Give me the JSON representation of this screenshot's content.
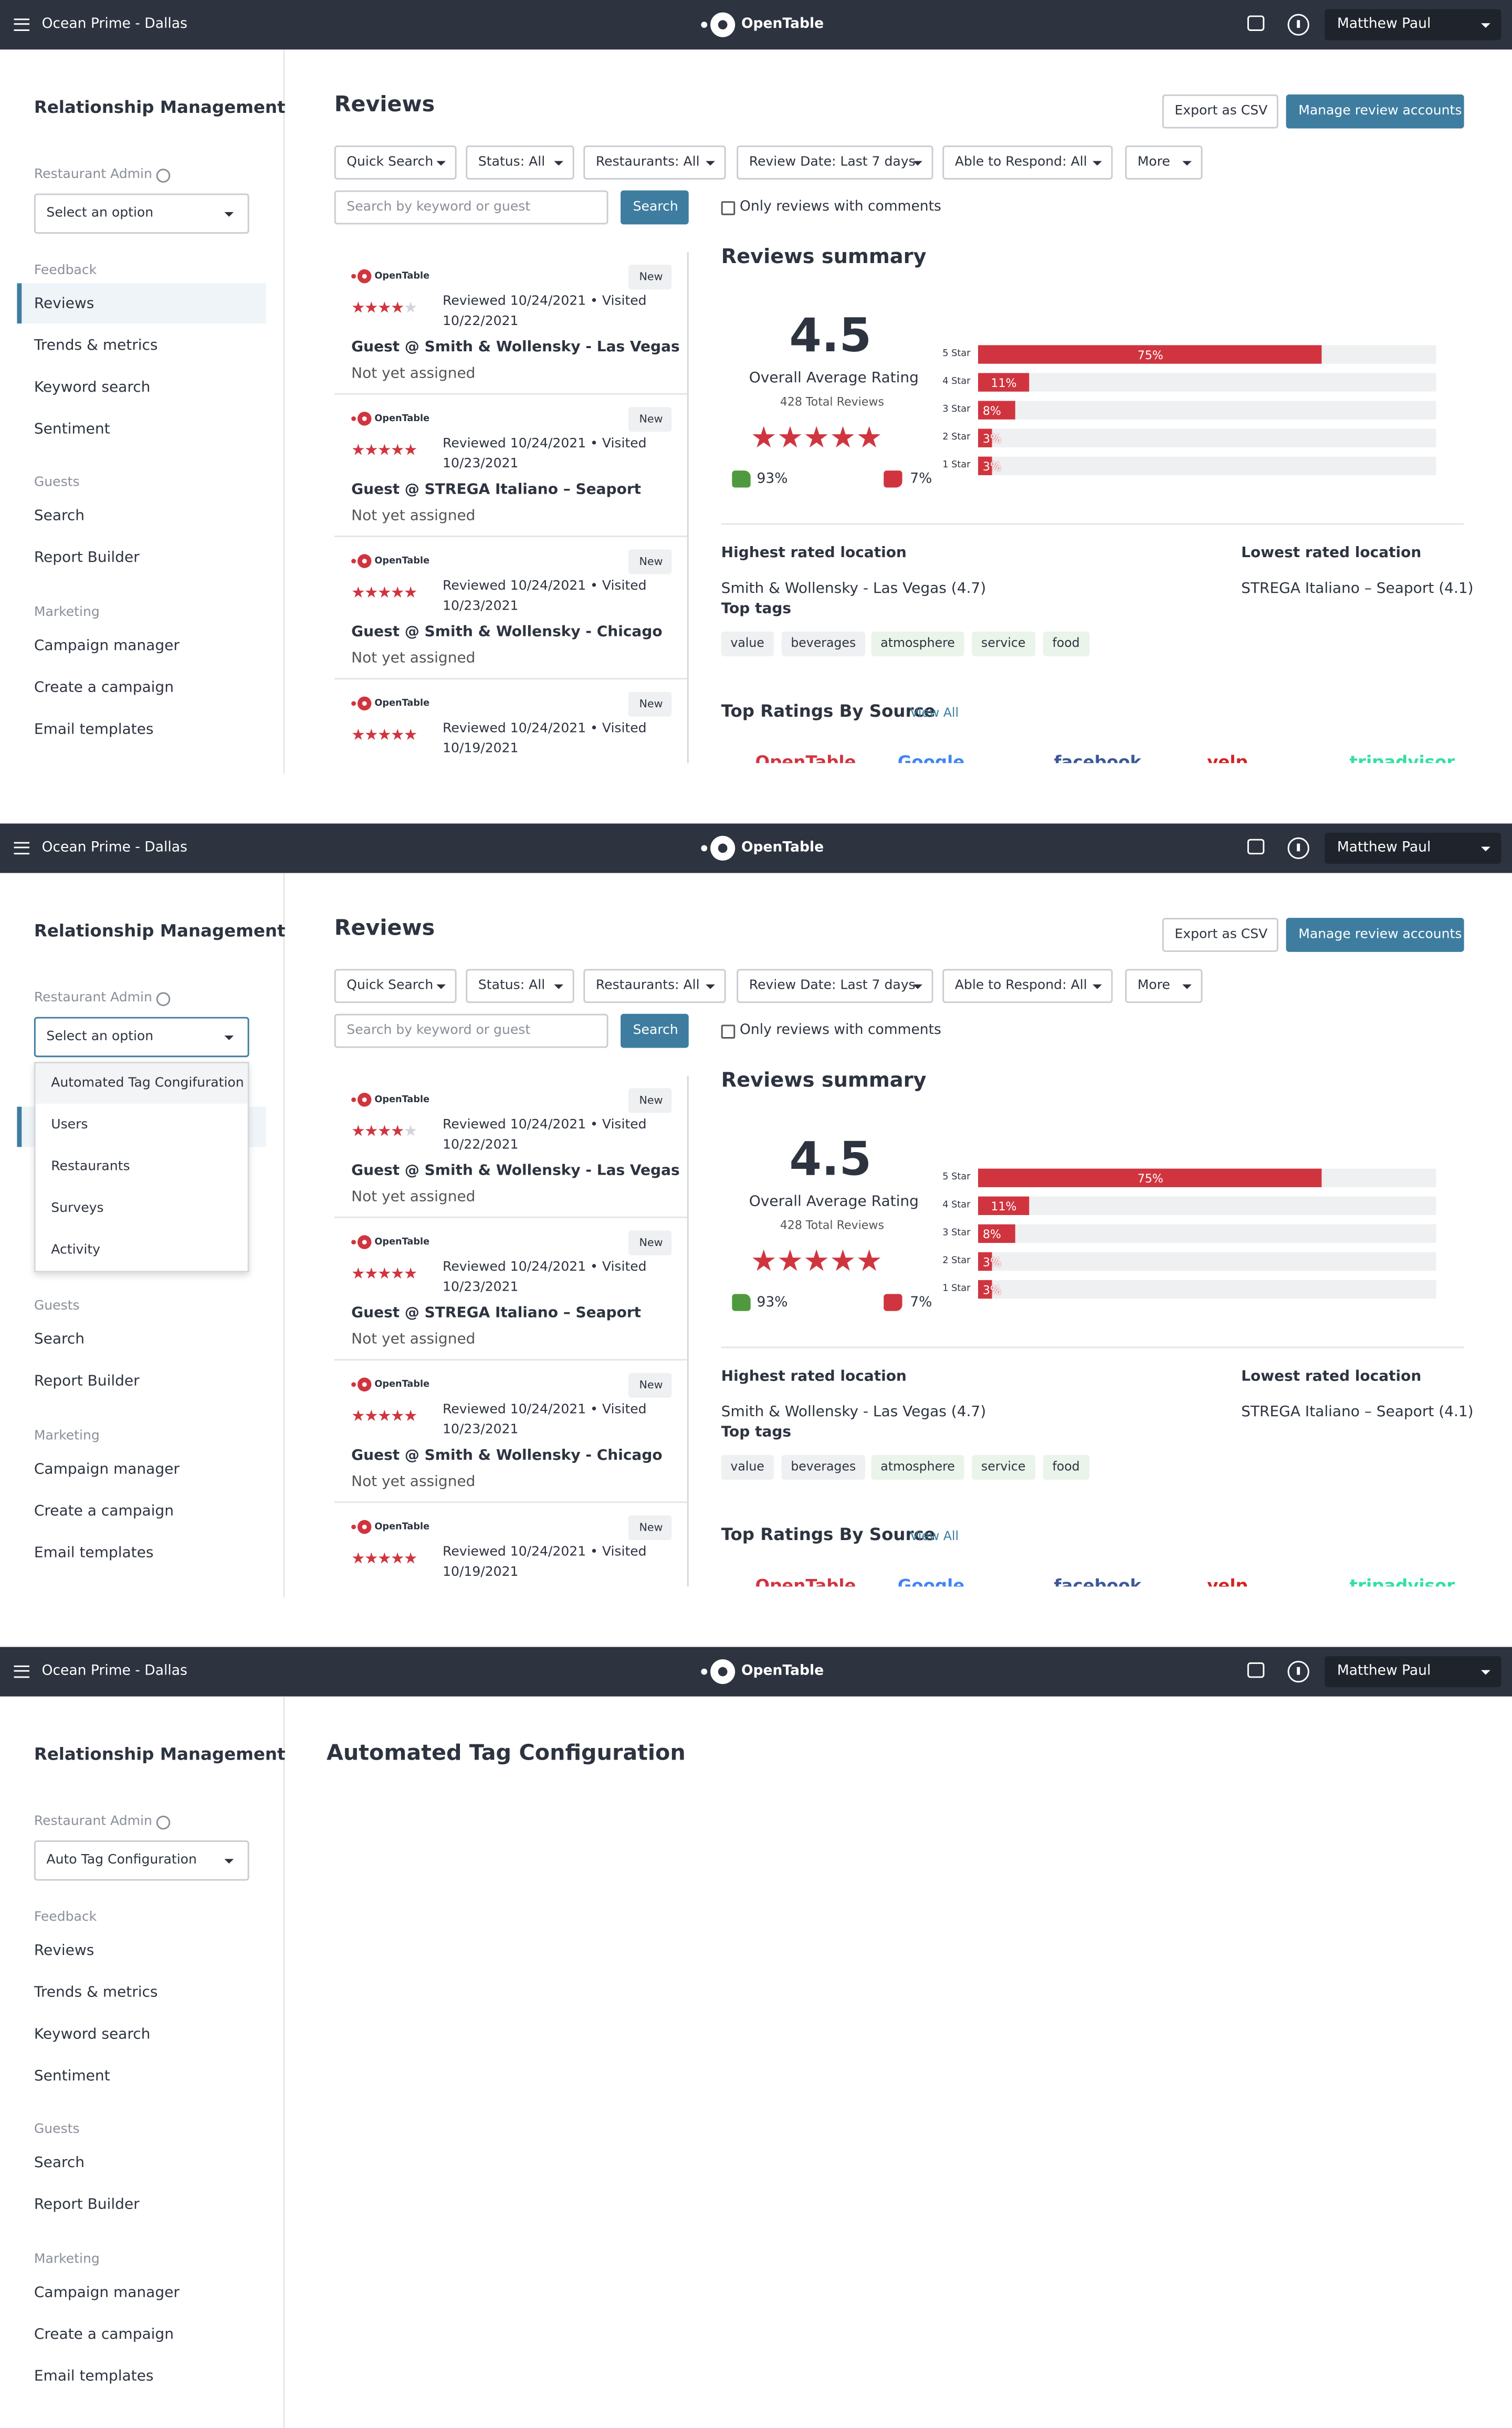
{
  "header": {
    "restaurant": "Ocean Prime - Dallas",
    "brand": "OpenTable",
    "user": "Matthew Paul"
  },
  "sidebar": {
    "title": "Relationship Management",
    "admin_label": "Restaurant Admin",
    "select_placeholder": "Select an option",
    "sections": [
      {
        "heading": "Feedback",
        "items": [
          "Reviews",
          "Trends & metrics",
          "Keyword search",
          "Sentiment"
        ]
      },
      {
        "heading": "Guests",
        "items": [
          "Search",
          "Report Builder"
        ]
      },
      {
        "heading": "Marketing",
        "items": [
          "Campaign manager",
          "Create a campaign",
          "Email templates"
        ]
      }
    ]
  },
  "admin_menu": [
    "Automated Tag Congifuration",
    "Users",
    "Restaurants",
    "Surveys",
    "Activity"
  ],
  "reviews_page": {
    "title": "Reviews",
    "export": "Export as CSV",
    "manage": "Manage review accounts",
    "filters": [
      "Quick Search",
      "Status: All",
      "Restaurants: All",
      "Review Date: Last 7 days",
      "Able to Respond: All",
      "More"
    ],
    "search_placeholder": "Search by keyword or guest",
    "search_button": "Search",
    "comments_only": "Only reviews with comments",
    "reviews": [
      {
        "source": "OpenTable",
        "badge": "New",
        "stars": 4,
        "meta": "Reviewed 10/24/2021 • Visited 10/22/2021",
        "guest": "Guest @ Smith & Wollensky - Las Vegas",
        "status": "Not yet assigned"
      },
      {
        "source": "OpenTable",
        "badge": "New",
        "stars": 5,
        "meta": "Reviewed 10/24/2021 • Visited 10/23/2021",
        "guest": "Guest @ STREGA Italiano – Seaport",
        "status": "Not yet assigned"
      },
      {
        "source": "OpenTable",
        "badge": "New",
        "stars": 5,
        "meta": "Reviewed 10/24/2021 • Visited 10/23/2021",
        "guest": "Guest @ Smith & Wollensky - Chicago",
        "status": "Not yet assigned"
      },
      {
        "source": "OpenTable",
        "badge": "New",
        "stars": 5,
        "meta": "Reviewed 10/24/2021 • Visited 10/19/2021",
        "guest": "",
        "status": ""
      }
    ],
    "summary": {
      "title": "Reviews summary",
      "rating": 4.5,
      "rating_label": "Overall Average Rating",
      "total": "428 Total Reviews",
      "positive": 93,
      "positive_label": "93%",
      "negative": 7,
      "negative_label": "7%",
      "distribution": {
        "categories": [
          "5 Star",
          "4 Star",
          "3 Star",
          "2 Star",
          "1 Star"
        ],
        "values": [
          75,
          11,
          8,
          3,
          3
        ],
        "value_labels": [
          "75%",
          "11%",
          "8%",
          "3%",
          "3%"
        ]
      },
      "highest_label": "Highest rated location",
      "highest": "Smith & Wollensky - Las Vegas (4.7)",
      "lowest_label": "Lowest rated location",
      "lowest": "STREGA Italiano – Seaport (4.1)",
      "tags_label": "Top tags",
      "tags": [
        "value",
        "beverages",
        "atmosphere",
        "service",
        "food"
      ],
      "sources_label": "Top Ratings By Source",
      "view_all": "View All",
      "sources": [
        "OpenTable",
        "Google",
        "facebook",
        "yelp",
        "tripadvisor"
      ]
    }
  },
  "config_page": {
    "select_value": "Auto Tag Configuration",
    "title": "Automated Tag Configuration"
  }
}
